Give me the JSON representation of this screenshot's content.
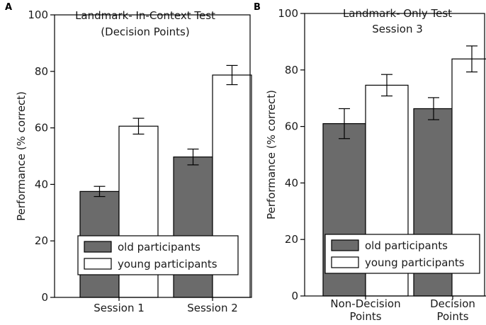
{
  "chart_data": [
    {
      "panel": "A",
      "type": "bar",
      "title_lines": [
        "Landmark- In-Context Test",
        "(Decision Points)"
      ],
      "ylabel": "Performance (% correct)",
      "ylim": [
        0,
        100
      ],
      "yticks": [
        0,
        20,
        40,
        60,
        80,
        100
      ],
      "categories": [
        [
          "Session 1"
        ],
        [
          "Session 2"
        ]
      ],
      "series": [
        {
          "name": "old participants",
          "color": "#6b6b6b",
          "values": [
            37.5,
            49.7
          ],
          "errors": [
            1.8,
            2.8
          ]
        },
        {
          "name": "young participants",
          "color": "#ffffff",
          "values": [
            60.6,
            78.7
          ],
          "errors": [
            2.8,
            3.4
          ]
        }
      ],
      "legend": [
        "old participants",
        "young participants"
      ]
    },
    {
      "panel": "B",
      "type": "bar",
      "title_lines": [
        "Landmark- Only Test",
        "Session 3"
      ],
      "ylabel": "Performance (% correct)",
      "ylim": [
        0,
        100
      ],
      "yticks": [
        0,
        20,
        40,
        60,
        80,
        100
      ],
      "categories": [
        [
          "Non-Decision",
          "Points"
        ],
        [
          "Decision",
          "Points"
        ]
      ],
      "series": [
        {
          "name": "old participants",
          "color": "#6b6b6b",
          "values": [
            61.0,
            66.3
          ],
          "errors": [
            5.3,
            3.9
          ]
        },
        {
          "name": "young participants",
          "color": "#ffffff",
          "values": [
            74.6,
            83.9
          ],
          "errors": [
            3.8,
            4.6
          ]
        }
      ],
      "legend": [
        "old participants",
        "young participants"
      ]
    }
  ]
}
